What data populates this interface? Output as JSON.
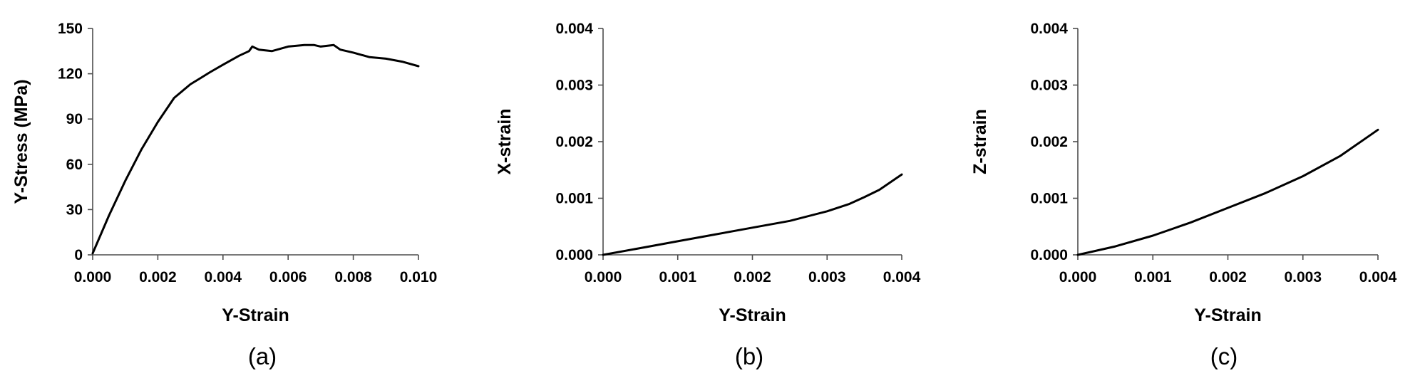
{
  "chart_data": [
    {
      "type": "line",
      "caption": "(a)",
      "xlabel": "Y-Strain",
      "ylabel": "Y-Stress (MPa)",
      "xlim": [
        0,
        0.01
      ],
      "ylim": [
        0,
        150
      ],
      "x_ticks": [
        "0.000",
        "0.002",
        "0.004",
        "0.006",
        "0.008",
        "0.010"
      ],
      "y_ticks": [
        "0",
        "30",
        "60",
        "90",
        "120",
        "150"
      ],
      "grid": false,
      "series": [
        {
          "x": [
            0.0,
            0.0005,
            0.001,
            0.0015,
            0.002,
            0.0025,
            0.003,
            0.0033,
            0.0036,
            0.004,
            0.0045,
            0.0048,
            0.0049,
            0.0051,
            0.0055,
            0.006,
            0.0065,
            0.0068,
            0.007,
            0.0074,
            0.0076,
            0.008,
            0.0085,
            0.009,
            0.0095,
            0.01
          ],
          "y": [
            1,
            26,
            49,
            70,
            88,
            104,
            113,
            117,
            121,
            126,
            132,
            135,
            138,
            136,
            135,
            138,
            139,
            139,
            138,
            139,
            136,
            134,
            131,
            130,
            128,
            125
          ]
        }
      ]
    },
    {
      "type": "line",
      "caption": "(b)",
      "xlabel": "Y-Strain",
      "ylabel": "X-strain",
      "xlim": [
        0,
        0.004
      ],
      "ylim": [
        0,
        0.004
      ],
      "x_ticks": [
        "0.000",
        "0.001",
        "0.002",
        "0.003",
        "0.004"
      ],
      "y_ticks": [
        "0.000",
        "0.001",
        "0.002",
        "0.003",
        "0.004"
      ],
      "grid": false,
      "series": [
        {
          "x": [
            0.0,
            0.0005,
            0.001,
            0.0015,
            0.002,
            0.0025,
            0.003,
            0.0033,
            0.0035,
            0.0037,
            0.004
          ],
          "y": [
            0.0,
            0.00012,
            0.00024,
            0.00036,
            0.00048,
            0.0006,
            0.00077,
            0.0009,
            0.00102,
            0.00115,
            0.00142
          ]
        }
      ]
    },
    {
      "type": "line",
      "caption": "(c)",
      "xlabel": "Y-Strain",
      "ylabel": "Z-strain",
      "xlim": [
        0,
        0.004
      ],
      "ylim": [
        0,
        0.004
      ],
      "x_ticks": [
        "0.000",
        "0.001",
        "0.002",
        "0.003",
        "0.004"
      ],
      "y_ticks": [
        "0.000",
        "0.001",
        "0.002",
        "0.003",
        "0.004"
      ],
      "grid": false,
      "series": [
        {
          "x": [
            0.0,
            0.0005,
            0.001,
            0.0015,
            0.002,
            0.0025,
            0.003,
            0.0035,
            0.004
          ],
          "y": [
            0.0,
            0.00015,
            0.00034,
            0.00057,
            0.00083,
            0.00109,
            0.00139,
            0.00175,
            0.00221
          ]
        }
      ]
    }
  ]
}
